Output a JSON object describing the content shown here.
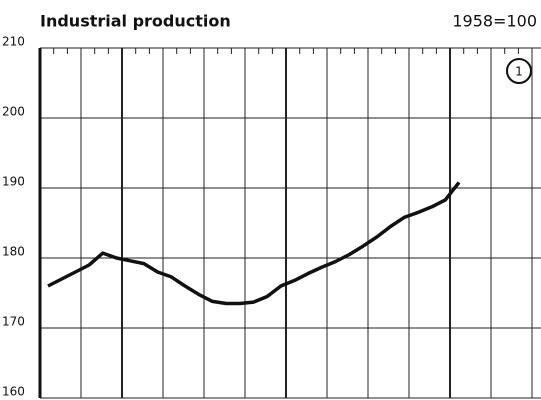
{
  "chart_data": {
    "type": "line",
    "title": "Industrial production",
    "subtitle": "1958=100",
    "annotation": "1",
    "values": [
      176,
      177,
      178,
      179,
      180.7,
      180,
      179.6,
      179.2,
      178,
      177.3,
      176,
      174.8,
      173.8,
      173.5,
      173.5,
      173.7,
      174.5,
      176,
      176.8,
      177.8,
      178.7,
      179.5,
      180.5,
      181.7,
      183,
      184.5,
      185.8,
      186.5,
      187.3,
      188.3,
      190.8
    ],
    "color": "#111111",
    "ylim": [
      160,
      210
    ],
    "yticks": [
      160,
      170,
      180,
      190,
      200,
      210
    ],
    "grid": true
  }
}
